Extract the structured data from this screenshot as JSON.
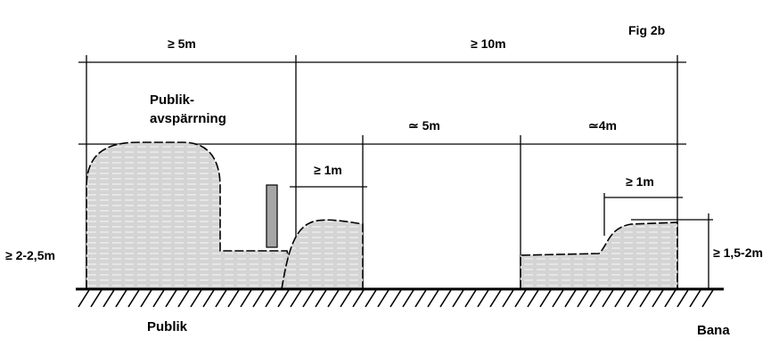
{
  "figure": {
    "fig_label": "Fig 2b",
    "dim_total_left": "≥ 5m",
    "dim_total_right": "≥ 10m",
    "barrier_label_line1": "Publik-",
    "barrier_label_line2": "avspärrning",
    "dim_gap_mid": "≃ 5m",
    "dim_gap_right": "≃4m",
    "dim_left_mound_top": "≥ 1m",
    "dim_right_mound_top": "≥ 1m",
    "dim_height_left": "≥ 2-2,5m",
    "dim_height_right": "≥ 1,5-2m",
    "ground_label_left": "Publik",
    "ground_label_right": "Bana"
  },
  "colors": {
    "fill": "#d9d9d9",
    "post": "#a6a6a6",
    "line": "#000000"
  }
}
